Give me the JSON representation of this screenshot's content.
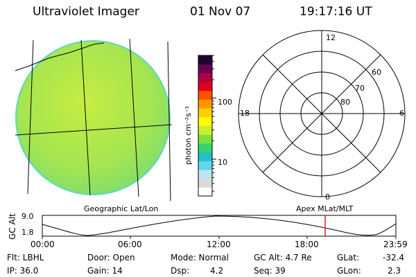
{
  "header": {
    "title": "Ultraviolet Imager",
    "date": "01 Nov 07",
    "time": "19:17:16 UT"
  },
  "colorbar": {
    "unit_label": "photon cm⁻²s⁻¹",
    "ticks": [
      {
        "value": 100,
        "label": "100"
      },
      {
        "value": 10,
        "label": "10"
      }
    ],
    "scale": "log",
    "range": [
      2.5,
      500
    ],
    "colors": [
      "#ffffff",
      "#d9d9d9",
      "#bfe6f0",
      "#5fd7e8",
      "#22c0c8",
      "#36d36e",
      "#7fe040",
      "#c8f030",
      "#ffff00",
      "#ffd000",
      "#ff9800",
      "#ff5000",
      "#e00020",
      "#b00040",
      "#6a0050",
      "#200030"
    ]
  },
  "left_panel": {
    "label": "Geographic Lat/Lon",
    "fill_color": "#b4e84a"
  },
  "right_panel": {
    "label": "Apex MLat/MLT",
    "mlt_labels": {
      "top": "12",
      "left": "18",
      "right": "6",
      "bottom": "0"
    },
    "lat_labels": [
      "60",
      "70",
      "80"
    ]
  },
  "altitude_plot": {
    "ylabel": "GC Alt",
    "y_ticks": [
      "9.0",
      "1.8"
    ],
    "x_ticks": [
      "00:00",
      "06:00",
      "12:00",
      "18:00",
      "23:59"
    ],
    "marker_time": "19:17",
    "marker_color": "#e02020"
  },
  "footer": {
    "flt": "Flt: LBHL",
    "door": "Door: Open",
    "mode": "Mode: Normal",
    "gcalt": "GC Alt: 4.7 Re",
    "glat_label": "GLat:",
    "glat_value": "-32.4",
    "ip": "IP: 36.0",
    "gain": "Gain: 14",
    "dsp_label": "Dsp:",
    "dsp_value": "4.2",
    "seq": "Seq: 39",
    "glon_label": "GLon:",
    "glon_value": "2.3"
  }
}
